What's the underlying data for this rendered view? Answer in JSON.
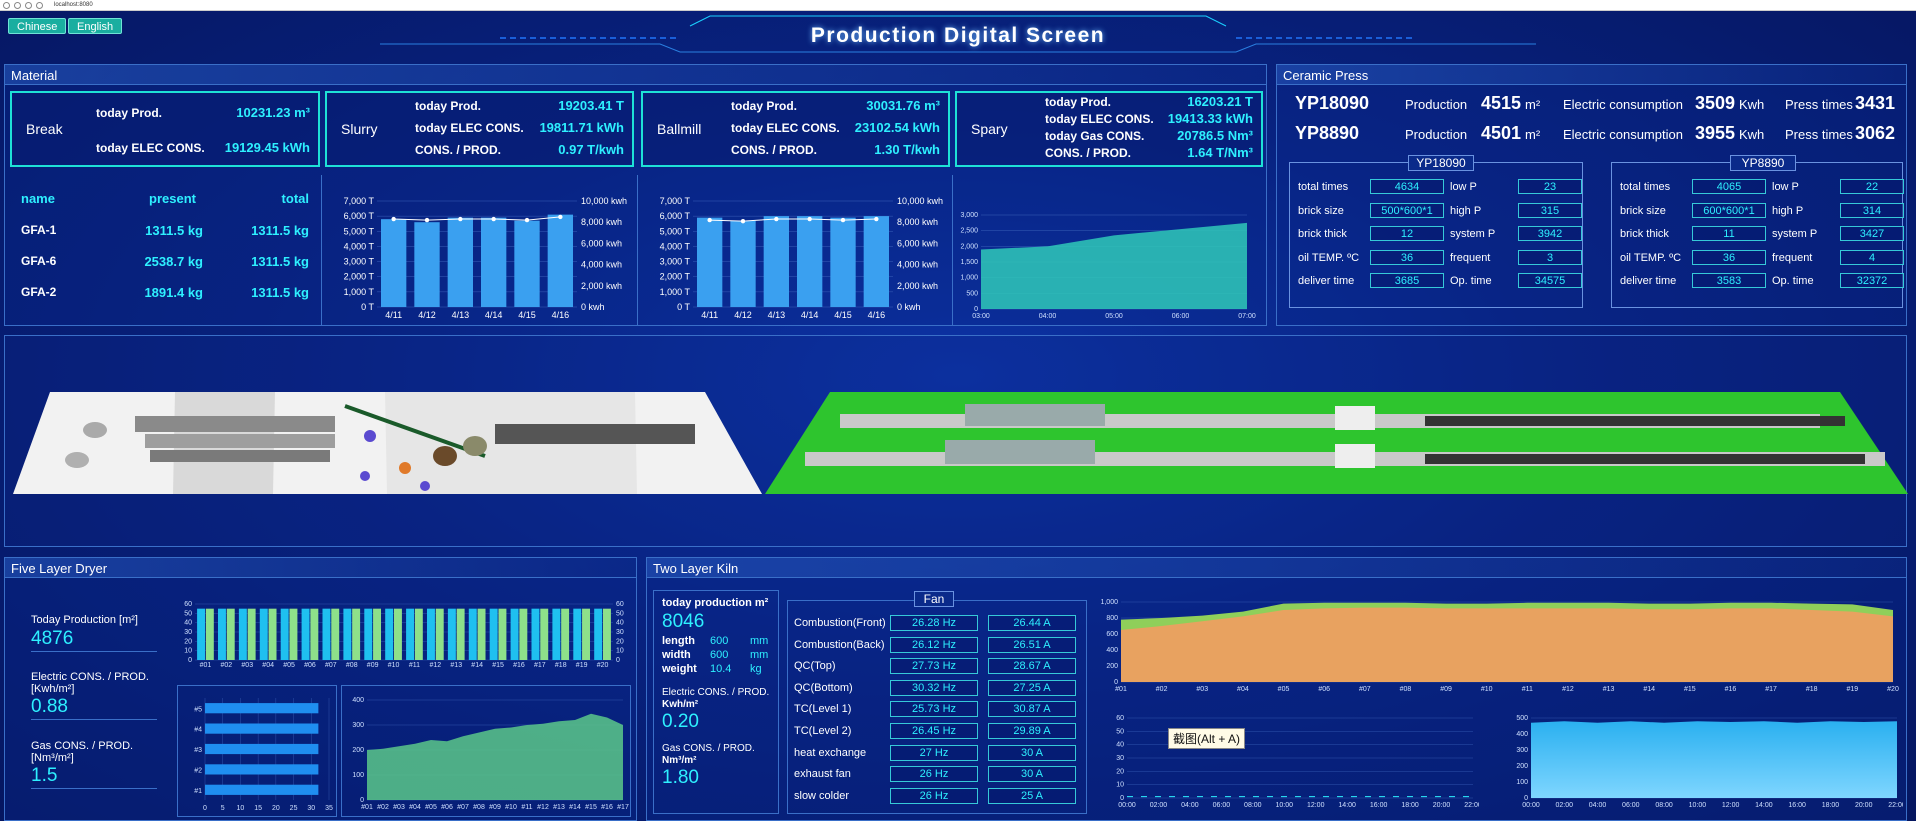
{
  "browser": {
    "url": "localhost:8080"
  },
  "header": {
    "title": "Production Digital Screen",
    "lang_cn": "Chinese",
    "lang_en": "English"
  },
  "material": {
    "title": "Material",
    "break": {
      "name": "Break",
      "prod_label": "today Prod.",
      "prod": "10231.23 m³",
      "elec_label": "today ELEC CONS.",
      "elec": "19129.45 kWh"
    },
    "slurry": {
      "name": "Slurry",
      "prod_label": "today Prod.",
      "prod": "19203.41 T",
      "elec_label": "today ELEC CONS.",
      "elec": "19811.71 kWh",
      "ratio_label": "CONS. / PROD.",
      "ratio": "0.97 T/kwh"
    },
    "ballmill": {
      "name": "Ballmill",
      "prod_label": "today Prod.",
      "prod": "30031.76 m³",
      "elec_label": "today ELEC CONS.",
      "elec": "23102.54 kWh",
      "ratio_label": "CONS. / PROD.",
      "ratio": "1.30 T/kwh"
    },
    "spary": {
      "name": "Spary",
      "prod_label": "today Prod.",
      "prod": "16203.21 T",
      "elec_label": "today ELEC CONS.",
      "elec": "19413.33 kWh",
      "gas_label": "today Gas CONS.",
      "gas": "20786.5 Nm³",
      "ratio_label": "CONS. / PROD.",
      "ratio": "1.64 T/Nm³"
    },
    "table": {
      "headers": [
        "name",
        "present",
        "total"
      ],
      "rows": [
        [
          "GFA-1",
          "1311.5 kg",
          "1311.5 kg"
        ],
        [
          "GFA-6",
          "2538.7 kg",
          "1311.5 kg"
        ],
        [
          "GFA-2",
          "1891.4 kg",
          "1311.5 kg"
        ]
      ]
    }
  },
  "press": {
    "title": "Ceramic Press",
    "lines": [
      {
        "name": "YP18090",
        "prod_label": "Production",
        "prod": "4515",
        "prod_unit": "m²",
        "elec_label": "Electric consumption",
        "elec": "3509",
        "elec_unit": "Kwh",
        "times_label": "Press times",
        "times": "3431"
      },
      {
        "name": "YP8890",
        "prod_label": "Production",
        "prod": "4501",
        "prod_unit": "m²",
        "elec_label": "Electric consumption",
        "elec": "3955",
        "elec_unit": "Kwh",
        "times_label": "Press times",
        "times": "3062"
      }
    ],
    "cards": [
      {
        "name": "YP18090",
        "rows": [
          [
            "total times",
            "4634",
            "low P",
            "23"
          ],
          [
            "brick size",
            "500*600*1",
            "high P",
            "315"
          ],
          [
            "brick thick",
            "12",
            "system P",
            "3942"
          ],
          [
            "oil TEMP. ºC",
            "36",
            "frequent",
            "3"
          ],
          [
            "deliver time",
            "3685",
            "Op. time",
            "34575"
          ]
        ]
      },
      {
        "name": "YP8890",
        "rows": [
          [
            "total times",
            "4065",
            "low P",
            "22"
          ],
          [
            "brick size",
            "600*600*1",
            "high P",
            "314"
          ],
          [
            "brick thick",
            "11",
            "system P",
            "3427"
          ],
          [
            "oil TEMP. ºC",
            "36",
            "frequent",
            "4"
          ],
          [
            "deliver time",
            "3583",
            "Op. time",
            "32372"
          ]
        ]
      }
    ]
  },
  "dryer": {
    "title": "Five Layer Dryer",
    "prod_label": "Today Production [m²]",
    "prod": "4876",
    "elec_label": "Electric CONS. / PROD. [Kwh/m²]",
    "elec": "0.88",
    "gas_label": "Gas CONS. / PROD. [Nm³/m²]",
    "gas": "1.5"
  },
  "kiln": {
    "title": "Two Layer Kiln",
    "prod_label": "today production",
    "prod_unit": "m²",
    "prod": "8046",
    "length_label": "length",
    "length": "600",
    "length_unit": "mm",
    "width_label": "width",
    "width": "600",
    "width_unit": "mm",
    "weight_label": "weight",
    "weight": "10.4",
    "weight_unit": "kg",
    "elec_label": "Electric CONS. / PROD.",
    "elec_unit": "Kwh/m²",
    "elec": "0.20",
    "gas_label": "Gas CONS. / PROD.",
    "gas_unit": "Nm³/m²",
    "gas": "1.80",
    "fan_title": "Fan",
    "fans": [
      [
        "Combustion(Front)",
        "26.28 Hz",
        "26.44 A"
      ],
      [
        "Combustion(Back)",
        "26.12 Hz",
        "26.51 A"
      ],
      [
        "QC(Top)",
        "27.73 Hz",
        "28.67 A"
      ],
      [
        "QC(Bottom)",
        "30.32 Hz",
        "27.25 A"
      ],
      [
        "TC(Level 1)",
        "25.73 Hz",
        "30.87 A"
      ],
      [
        "TC(Level 2)",
        "26.45 Hz",
        "29.89 A"
      ],
      [
        "heat exchange",
        "27 Hz",
        "30 A"
      ],
      [
        "exhaust fan",
        "26 Hz",
        "30 A"
      ],
      [
        "slow colder",
        "26 Hz",
        "25 A"
      ]
    ],
    "tooltip": "截图(Alt + A)"
  },
  "chart_data": [
    {
      "id": "slurry",
      "type": "bar",
      "categories": [
        "4/11",
        "4/12",
        "4/13",
        "4/14",
        "4/15",
        "4/16"
      ],
      "values": [
        5800,
        5600,
        5900,
        5900,
        5700,
        6100
      ],
      "line": [
        8300,
        8200,
        8300,
        8300,
        8200,
        8500
      ],
      "yticks": [
        "0 T",
        "1,000 T",
        "2,000 T",
        "3,000 T",
        "4,000 T",
        "5,000 T",
        "6,000 T",
        "7,000 T"
      ],
      "y2ticks": [
        "0 kwh",
        "2,000 kwh",
        "4,000 kwh",
        "6,000 kwh",
        "8,000 kwh",
        "10,000 kwh"
      ],
      "ylim": [
        0,
        7000
      ],
      "y2lim": [
        0,
        10000
      ]
    },
    {
      "id": "ballmill",
      "type": "bar",
      "categories": [
        "4/11",
        "4/12",
        "4/13",
        "4/14",
        "4/15",
        "4/16"
      ],
      "values": [
        5900,
        5700,
        6000,
        6000,
        5900,
        6000
      ],
      "line": [
        8200,
        8100,
        8300,
        8300,
        8200,
        8300
      ],
      "yticks": [
        "0 T",
        "1,000 T",
        "2,000 T",
        "3,000 T",
        "4,000 T",
        "5,000 T",
        "6,000 T",
        "7,000 T"
      ],
      "y2ticks": [
        "0 kwh",
        "2,000 kwh",
        "4,000 kwh",
        "6,000 kwh",
        "8,000 kwh",
        "10,000 kwh"
      ],
      "ylim": [
        0,
        7000
      ],
      "y2lim": [
        0,
        10000
      ]
    },
    {
      "id": "spary",
      "type": "area",
      "x": [
        "03:00",
        "04:00",
        "05:00",
        "06:00",
        "07:00"
      ],
      "values": [
        1900,
        2000,
        2350,
        2550,
        2750
      ],
      "yticks": [
        "0",
        "500",
        "1,000",
        "1,500",
        "2,000",
        "2,500",
        "3,000"
      ],
      "ylim": [
        0,
        3000
      ]
    },
    {
      "id": "dryer-bars",
      "type": "bar",
      "categories": [
        "#01",
        "#02",
        "#03",
        "#04",
        "#05",
        "#06",
        "#07",
        "#08",
        "#09",
        "#10",
        "#11",
        "#12",
        "#13",
        "#14",
        "#15",
        "#16",
        "#17",
        "#18",
        "#19",
        "#20"
      ],
      "values": [
        55,
        55,
        55,
        55,
        55,
        55,
        55,
        55,
        55,
        55,
        55,
        55,
        55,
        55,
        55,
        55,
        55,
        55,
        55,
        55
      ],
      "values2": [
        55,
        55,
        55,
        55,
        55,
        55,
        55,
        55,
        55,
        55,
        55,
        55,
        55,
        55,
        55,
        55,
        55,
        55,
        55,
        55
      ],
      "yticks": [
        "0",
        "10",
        "20",
        "30",
        "40",
        "50",
        "60"
      ],
      "ylim": [
        0,
        60
      ]
    },
    {
      "id": "dryer-hbar",
      "type": "bar",
      "categories": [
        "#1",
        "#2",
        "#3",
        "#4",
        "#5"
      ],
      "values": [
        32,
        32,
        32,
        32,
        32
      ],
      "xticks": [
        "0",
        "5",
        "10",
        "15",
        "20",
        "25",
        "30",
        "35"
      ],
      "xlim": [
        0,
        35
      ]
    },
    {
      "id": "dryer-area",
      "type": "area",
      "categories": [
        "#01",
        "#02",
        "#03",
        "#04",
        "#05",
        "#06",
        "#07",
        "#08",
        "#09",
        "#10",
        "#11",
        "#12",
        "#13",
        "#14",
        "#15",
        "#16",
        "#17"
      ],
      "values": [
        200,
        205,
        215,
        225,
        240,
        235,
        255,
        270,
        285,
        290,
        300,
        305,
        315,
        320,
        345,
        330,
        300
      ],
      "yticks": [
        "0",
        "100",
        "200",
        "300",
        "400"
      ],
      "ylim": [
        0,
        400
      ]
    },
    {
      "id": "kiln-area",
      "type": "area",
      "categories": [
        "#01",
        "#02",
        "#03",
        "#04",
        "#05",
        "#06",
        "#07",
        "#08",
        "#09",
        "#10",
        "#11",
        "#12",
        "#13",
        "#14",
        "#15",
        "#16",
        "#17",
        "#18",
        "#19",
        "#20"
      ],
      "values": [
        780,
        800,
        830,
        880,
        980,
        990,
        990,
        990,
        980,
        980,
        990,
        990,
        990,
        980,
        980,
        990,
        990,
        980,
        970,
        900
      ],
      "values2": [
        650,
        700,
        760,
        820,
        900,
        920,
        930,
        930,
        920,
        920,
        920,
        920,
        920,
        910,
        910,
        920,
        920,
        900,
        880,
        820
      ],
      "yticks": [
        "0",
        "200",
        "400",
        "600",
        "800",
        "1,000"
      ],
      "ylim": [
        0,
        1000
      ]
    },
    {
      "id": "kiln-line",
      "type": "line",
      "x": [
        "00:00",
        "02:00",
        "04:00",
        "06:00",
        "08:00",
        "10:00",
        "12:00",
        "14:00",
        "16:00",
        "18:00",
        "20:00",
        "22:00"
      ],
      "values": [
        1,
        1,
        1,
        1,
        1,
        1,
        1,
        1,
        1,
        1,
        1,
        1
      ],
      "yticks": [
        "0",
        "10",
        "20",
        "30",
        "40",
        "50",
        "60"
      ],
      "ylim": [
        0,
        60
      ]
    },
    {
      "id": "kiln-area2",
      "type": "area",
      "x": [
        "00:00",
        "02:00",
        "04:00",
        "06:00",
        "08:00",
        "10:00",
        "12:00",
        "14:00",
        "16:00",
        "18:00",
        "20:00",
        "22:00"
      ],
      "values": [
        470,
        480,
        470,
        480,
        470,
        480,
        475,
        480,
        470,
        480,
        475,
        480
      ],
      "yticks": [
        "0",
        "100",
        "200",
        "300",
        "400",
        "500"
      ],
      "ylim": [
        0,
        500
      ]
    }
  ]
}
